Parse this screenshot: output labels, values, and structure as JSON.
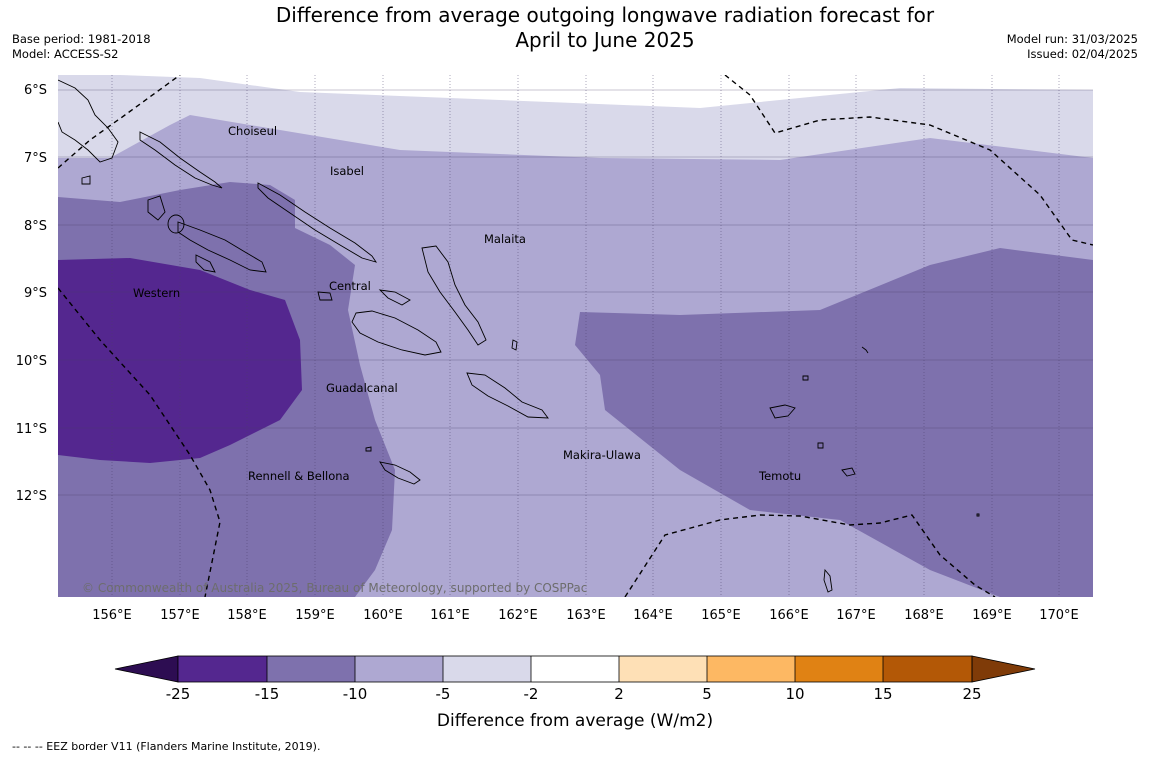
{
  "header": {
    "title_line1": "Difference from average outgoing longwave radiation forecast for",
    "title_line2": "April to June 2025",
    "base_period": "Base period: 1981-2018",
    "model": "Model: ACCESS-S2",
    "model_run": "Model run: 31/03/2025",
    "issued": "Issued: 02/04/2025"
  },
  "map": {
    "lat_labels": [
      "6°S",
      "7°S",
      "8°S",
      "9°S",
      "10°S",
      "11°S",
      "12°S"
    ],
    "lon_labels": [
      "156°E",
      "157°E",
      "158°E",
      "159°E",
      "160°E",
      "161°E",
      "162°E",
      "163°E",
      "164°E",
      "165°E",
      "166°E",
      "167°E",
      "168°E",
      "169°E",
      "170°E"
    ],
    "regions": {
      "choiseul": "Choiseul",
      "isabel": "Isabel",
      "malaita": "Malaita",
      "central": "Central",
      "western": "Western",
      "guadalcanal": "Guadalcanal",
      "makira_ulawa": "Makira-Ulawa",
      "temotu": "Temotu",
      "rennell_bellona": "Rennell & Bellona"
    },
    "copyright": "© Commonwealth of Australia 2025, Bureau of Meteorology, supported by COSPPac"
  },
  "colorbar": {
    "ticks": [
      "-25",
      "-15",
      "-10",
      "-5",
      "-2",
      "2",
      "5",
      "10",
      "15",
      "25"
    ],
    "colors": [
      "#2d0d52",
      "#54278f",
      "#7e71ad",
      "#aea8d2",
      "#d9d9ea",
      "#ffffff",
      "#fee0b6",
      "#fdb863",
      "#e08214",
      "#b35806",
      "#7f3b08"
    ],
    "title": "Difference from average (W/m2)"
  },
  "footnote": "--  --  -- EEZ border V11 (Flanders Marine Institute, 2019)."
}
